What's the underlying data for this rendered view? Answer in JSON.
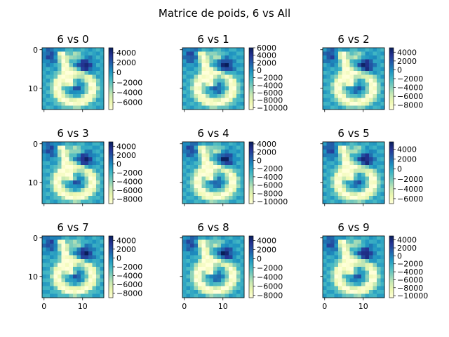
{
  "figure": {
    "title": "Matrice de poids, 6 vs All"
  },
  "chart_data": {
    "type": "heatmap",
    "colormap": "YlGnBu",
    "colormap_stops": [
      "#ffffd9",
      "#edf8b1",
      "#c7e9b4",
      "#7fcdbb",
      "#41b6c4",
      "#1d91c0",
      "#225ea8",
      "#253494",
      "#081d58"
    ],
    "image_size": [
      16,
      16
    ],
    "x_ticks": [
      "0",
      "10"
    ],
    "y_ticks": [
      "0",
      "10"
    ],
    "panels": [
      {
        "title": "6 vs 0",
        "vmin": -7500,
        "vmax": 5000,
        "cbar_ticks": [
          4000,
          2000,
          0,
          -2000,
          -4000,
          -6000
        ],
        "cbar_labels": [
          "4000",
          "2000",
          "0",
          "−2000",
          "−4000",
          "−6000"
        ]
      },
      {
        "title": "6 vs 1",
        "vmin": -10500,
        "vmax": 6000,
        "cbar_ticks": [
          6000,
          4000,
          2000,
          0,
          -2000,
          -4000,
          -6000,
          -8000,
          -10000
        ],
        "cbar_labels": [
          "6000",
          "4000",
          "2000",
          "0",
          "−2000",
          "−4000",
          "−6000",
          "−8000",
          "−10000"
        ]
      },
      {
        "title": "6 vs 2",
        "vmin": -9000,
        "vmax": 5000,
        "cbar_ticks": [
          4000,
          2000,
          0,
          -2000,
          -4000,
          -6000,
          -8000
        ],
        "cbar_labels": [
          "4000",
          "2000",
          "0",
          "−2000",
          "−4000",
          "−6000",
          "−8000"
        ]
      },
      {
        "title": "6 vs 3",
        "vmin": -9000,
        "vmax": 5000,
        "cbar_ticks": [
          4000,
          2000,
          0,
          -2000,
          -4000,
          -6000,
          -8000
        ],
        "cbar_labels": [
          "4000",
          "2000",
          "0",
          "−2000",
          "−4000",
          "−6000",
          "−8000"
        ]
      },
      {
        "title": "6 vs 4",
        "vmin": -10500,
        "vmax": 4500,
        "cbar_ticks": [
          4000,
          2000,
          0,
          -2000,
          -4000,
          -6000,
          -8000,
          -10000
        ],
        "cbar_labels": [
          "4000",
          "2000",
          "0",
          "−2000",
          "−4000",
          "−6000",
          "−8000",
          "−10000"
        ]
      },
      {
        "title": "6 vs 5",
        "vmin": -7000,
        "vmax": 5500,
        "cbar_ticks": [
          4000,
          2000,
          0,
          -2000,
          -4000,
          -6000
        ],
        "cbar_labels": [
          "4000",
          "2000",
          "0",
          "−2000",
          "−4000",
          "−6000"
        ]
      },
      {
        "title": "6 vs 7",
        "vmin": -9000,
        "vmax": 5000,
        "cbar_ticks": [
          4000,
          2000,
          0,
          -2000,
          -4000,
          -6000,
          -8000
        ],
        "cbar_labels": [
          "4000",
          "2000",
          "0",
          "−2000",
          "−4000",
          "−6000",
          "−8000"
        ]
      },
      {
        "title": "6 vs 8",
        "vmin": -8500,
        "vmax": 5000,
        "cbar_ticks": [
          4000,
          2000,
          0,
          -2000,
          -4000,
          -6000,
          -8000
        ],
        "cbar_labels": [
          "4000",
          "2000",
          "0",
          "−2000",
          "−4000",
          "−6000",
          "−8000"
        ]
      },
      {
        "title": "6 vs 9",
        "vmin": -10500,
        "vmax": 5000,
        "cbar_ticks": [
          4000,
          2000,
          0,
          -2000,
          -4000,
          -6000,
          -8000,
          -10000
        ],
        "cbar_labels": [
          "4000",
          "2000",
          "0",
          "−2000",
          "−4000",
          "−6000",
          "−8000",
          "−10000"
        ]
      }
    ]
  }
}
